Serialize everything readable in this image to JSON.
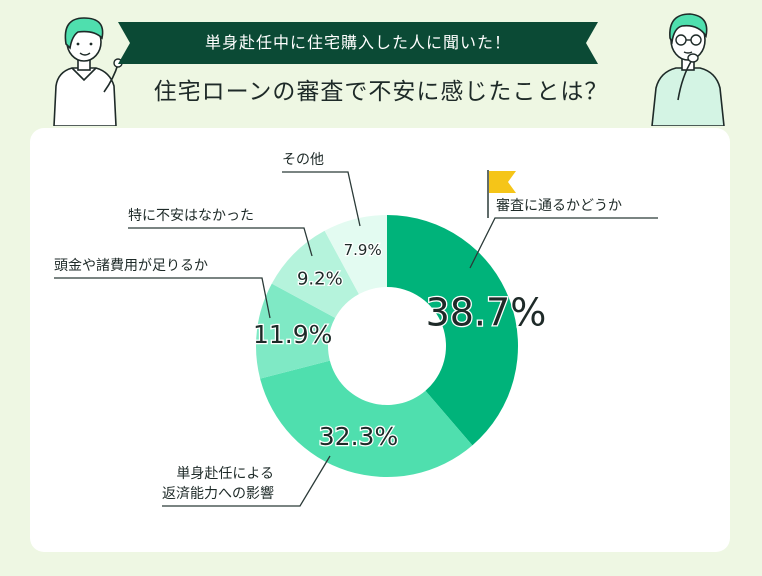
{
  "header": {
    "banner": "単身赴任中に住宅購入した人に聞いた！",
    "question": "住宅ローンの審査で不安に感じたことは？"
  },
  "colors": {
    "background": "#eef7e3",
    "banner": "#0b4a35",
    "card": "#ffffff",
    "flag": "#f5c518"
  },
  "icons": [
    "woman-pointing-icon",
    "man-thinking-icon",
    "flag-icon"
  ],
  "chart_data": {
    "type": "pie",
    "variant": "donut",
    "categories": [
      "審査に通るかどうか",
      "単身赴任による返済能力への影響",
      "頭金や諸費用が足りるか",
      "特に不安はなかった",
      "その他"
    ],
    "label_lines": [
      [
        "審査に通るかどうか"
      ],
      [
        "単身赴任による",
        "返済能力への影響"
      ],
      [
        "頭金や諸費用が足りるか"
      ],
      [
        "特に不安はなかった"
      ],
      [
        "その他"
      ]
    ],
    "values": [
      38.7,
      32.3,
      11.9,
      9.2,
      7.9
    ],
    "value_labels": [
      "38.7%",
      "32.3%",
      "11.9%",
      "9.2%",
      "7.9%"
    ],
    "colors": [
      "#00b37a",
      "#4fdfae",
      "#7fe9c5",
      "#b5f3dc",
      "#e3fbf1"
    ],
    "start": "12 o'clock",
    "direction": "clockwise"
  }
}
